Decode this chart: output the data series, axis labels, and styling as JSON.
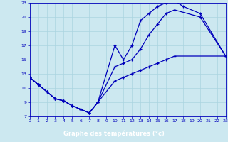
{
  "xlabel": "Graphe des températures (°c)",
  "bg_color": "#cce8f0",
  "grid_color": "#aad4e0",
  "line_color": "#0000bb",
  "xlim": [
    0,
    23
  ],
  "ylim": [
    7,
    23
  ],
  "xticks": [
    0,
    1,
    2,
    3,
    4,
    5,
    6,
    7,
    8,
    9,
    10,
    11,
    12,
    13,
    14,
    15,
    16,
    17,
    18,
    19,
    20,
    21,
    22,
    23
  ],
  "yticks": [
    7,
    9,
    11,
    13,
    15,
    17,
    19,
    21,
    23
  ],
  "curve_top_x": [
    0,
    1,
    2,
    3,
    4,
    5,
    6,
    7,
    8,
    10,
    11,
    12,
    13,
    14,
    15,
    16,
    17,
    18,
    20,
    23
  ],
  "curve_top_y": [
    12.5,
    11.5,
    10.5,
    9.5,
    9.2,
    8.5,
    8.0,
    7.5,
    9.0,
    17.0,
    15.0,
    17.0,
    20.5,
    21.5,
    22.5,
    23.0,
    23.3,
    22.5,
    21.5,
    15.5
  ],
  "curve_mid_x": [
    0,
    1,
    2,
    3,
    4,
    5,
    6,
    7,
    8,
    10,
    11,
    12,
    13,
    14,
    15,
    16,
    17,
    20,
    23
  ],
  "curve_mid_y": [
    12.5,
    11.5,
    10.5,
    9.5,
    9.2,
    8.5,
    8.0,
    7.5,
    9.0,
    14.0,
    14.5,
    15.0,
    16.5,
    18.5,
    20.0,
    21.5,
    22.0,
    21.0,
    15.5
  ],
  "curve_bot_x": [
    0,
    1,
    2,
    3,
    4,
    5,
    6,
    7,
    8,
    10,
    11,
    12,
    13,
    14,
    15,
    16,
    17,
    23
  ],
  "curve_bot_y": [
    12.5,
    11.5,
    10.5,
    9.5,
    9.2,
    8.5,
    8.0,
    7.5,
    9.0,
    12.0,
    12.5,
    13.0,
    13.5,
    14.0,
    14.5,
    15.0,
    15.5,
    15.5
  ]
}
